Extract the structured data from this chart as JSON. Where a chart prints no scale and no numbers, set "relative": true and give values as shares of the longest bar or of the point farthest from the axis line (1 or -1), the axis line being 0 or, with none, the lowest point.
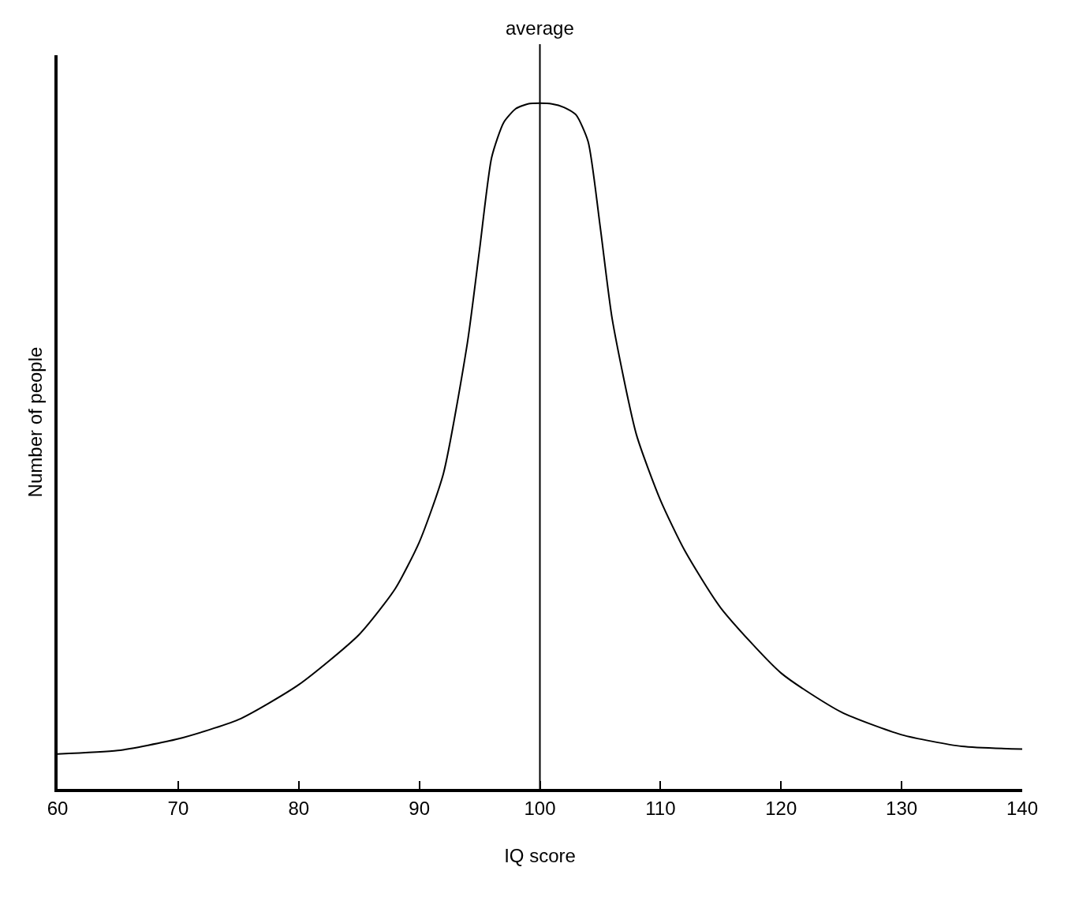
{
  "chart_data": {
    "type": "line",
    "relative": true,
    "xlabel": "IQ score",
    "ylabel": "Number of people",
    "x": [
      60,
      65,
      70,
      75,
      80,
      85,
      88,
      90,
      92,
      94,
      95,
      96,
      97,
      98,
      99,
      100,
      101,
      102,
      103,
      104,
      105,
      106,
      108,
      110,
      112,
      115,
      120,
      125,
      130,
      135,
      140
    ],
    "series": [
      {
        "color": "#000000",
        "values": [
          0.051,
          0.056,
          0.073,
          0.101,
          0.152,
          0.225,
          0.292,
          0.36,
          0.46,
          0.652,
          0.787,
          0.921,
          0.972,
          0.992,
          0.999,
          1,
          0.999,
          0.994,
          0.983,
          0.944,
          0.82,
          0.685,
          0.517,
          0.421,
          0.348,
          0.264,
          0.169,
          0.112,
          0.079,
          0.062,
          0.058
        ]
      }
    ],
    "xlim": [
      60,
      140
    ],
    "xticks": [
      60,
      70,
      80,
      90,
      100,
      110,
      120,
      130,
      140
    ],
    "ref_lines": [
      {
        "axis": "x",
        "value": 100,
        "label": "average",
        "color": "#000000"
      }
    ],
    "marker": "none",
    "line_style": "solid"
  }
}
